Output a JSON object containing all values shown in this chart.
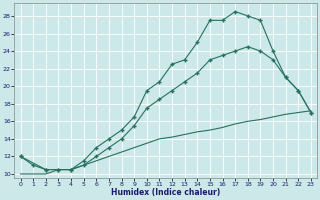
{
  "xlabel": "Humidex (Indice chaleur)",
  "bg_color": "#cce8e8",
  "grid_color": "#b0d0d0",
  "line_color": "#267060",
  "curve1_x": [
    0,
    1,
    2,
    3,
    4,
    5,
    6,
    7,
    8,
    9,
    10,
    11,
    12,
    13,
    14,
    15,
    16,
    17,
    18,
    19,
    20,
    21,
    22,
    23
  ],
  "curve1_y": [
    12,
    11,
    10.5,
    10.5,
    10.5,
    11.5,
    13,
    14,
    15,
    16.5,
    19.5,
    20.5,
    22.5,
    23.0,
    25.0,
    27.5,
    27.5,
    28.5,
    28.0,
    27.5,
    24.0,
    21.0,
    19.5,
    17.0
  ],
  "curve2_x": [
    0,
    2,
    3,
    4,
    5,
    6,
    7,
    8,
    9,
    10,
    11,
    12,
    13,
    14,
    15,
    16,
    17,
    18,
    19,
    20,
    21,
    22,
    23
  ],
  "curve2_y": [
    12,
    10.5,
    10.5,
    10.5,
    11.0,
    12.0,
    13.0,
    14.0,
    15.5,
    17.5,
    18.5,
    19.5,
    20.5,
    21.5,
    23.0,
    23.5,
    24.0,
    24.5,
    24.0,
    23.0,
    21.0,
    19.5,
    17.0
  ],
  "curve3_x": [
    0,
    2,
    3,
    4,
    5,
    6,
    7,
    8,
    9,
    10,
    11,
    12,
    13,
    14,
    15,
    16,
    17,
    18,
    19,
    20,
    21,
    22,
    23
  ],
  "curve3_y": [
    10,
    10.0,
    10.5,
    10.5,
    11.0,
    11.5,
    12.0,
    12.5,
    13.0,
    13.5,
    14.0,
    14.2,
    14.5,
    14.8,
    15.0,
    15.3,
    15.7,
    16.0,
    16.2,
    16.5,
    16.8,
    17.0,
    17.2
  ],
  "xlim": [
    -0.5,
    23.5
  ],
  "ylim": [
    9.5,
    29.5
  ],
  "xticks": [
    0,
    1,
    2,
    3,
    4,
    5,
    6,
    7,
    8,
    9,
    10,
    11,
    12,
    13,
    14,
    15,
    16,
    17,
    18,
    19,
    20,
    21,
    22,
    23
  ],
  "yticks": [
    10,
    12,
    14,
    16,
    18,
    20,
    22,
    24,
    26,
    28
  ]
}
